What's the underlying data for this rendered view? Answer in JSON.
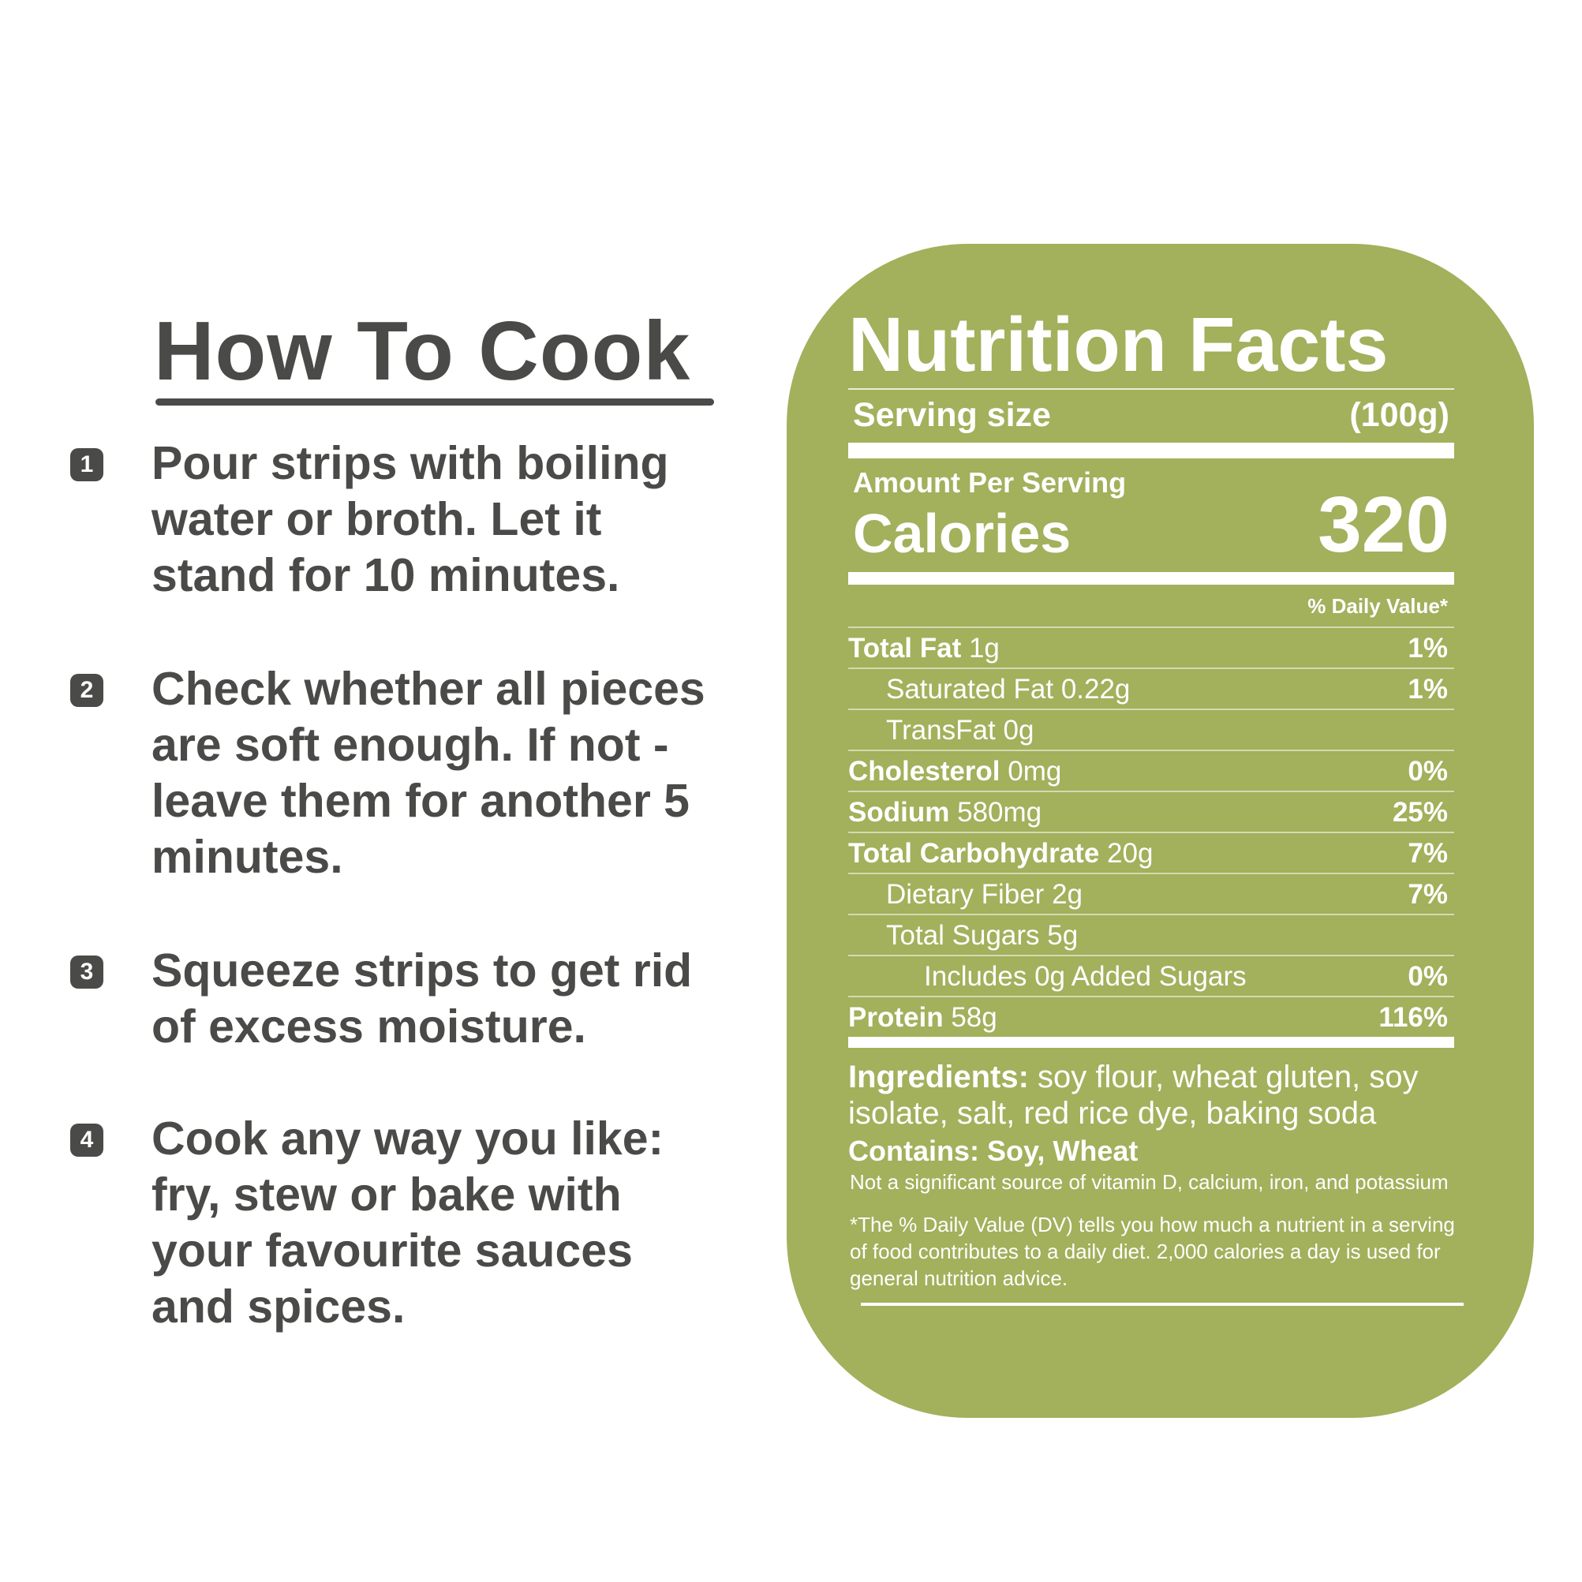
{
  "how_to_cook": {
    "title": "How To Cook",
    "steps": [
      {
        "number": "1",
        "text": "Pour strips with boiling water or broth. Let it stand for 10 minutes."
      },
      {
        "number": "2",
        "text": "Check whether all pieces are soft enough. If not - leave them for another 5 minutes."
      },
      {
        "number": "3",
        "text": "Squeeze strips to get rid of excess moisture."
      },
      {
        "number": "4",
        "text": "Cook any way you like: fry, stew or bake with your favourite sauces and spices."
      }
    ]
  },
  "nutrition_facts": {
    "title": "Nutrition Facts",
    "serving_size_label": "Serving size",
    "serving_size": "(100g)",
    "amount_per_serving": "Amount Per Serving",
    "calories_label": "Calories",
    "calories": "320",
    "daily_value_header": "% Daily Value*",
    "rows": [
      {
        "name": "Total Fat",
        "amount": "1g",
        "dv": "1%"
      },
      {
        "name": "Saturated Fat",
        "amount": "0.22g",
        "dv": "1%"
      },
      {
        "name": "TransFat",
        "amount": "0g"
      },
      {
        "name": "Cholesterol",
        "amount": "0mg",
        "dv": "0%"
      },
      {
        "name": "Sodium",
        "amount": "580mg",
        "dv": "25%"
      },
      {
        "name": "Total Carbohydrate",
        "amount": "20g",
        "dv": "7%"
      },
      {
        "name": "Dietary Fiber",
        "amount": "2g",
        "dv": "7%"
      },
      {
        "name": "Total Sugars",
        "amount": "5g"
      },
      {
        "name": "Includes 0g Added Sugars",
        "amount": "",
        "dv": "0%"
      },
      {
        "name": "Protein",
        "amount": "58g",
        "dv": "116%"
      }
    ],
    "ingredients_label": "Ingredients:",
    "ingredients": "soy flour, wheat gluten, soy isolate, salt, red rice dye, baking soda",
    "contains": "Contains: Soy, Wheat",
    "note": "Not a significant source of vitamin D, calcium, iron, and potassium",
    "footnote": "*The % Daily Value (DV) tells you how much a nutrient in a serving of food contributes to a daily diet. 2,000 calories a day is used for general nutrition advice."
  }
}
